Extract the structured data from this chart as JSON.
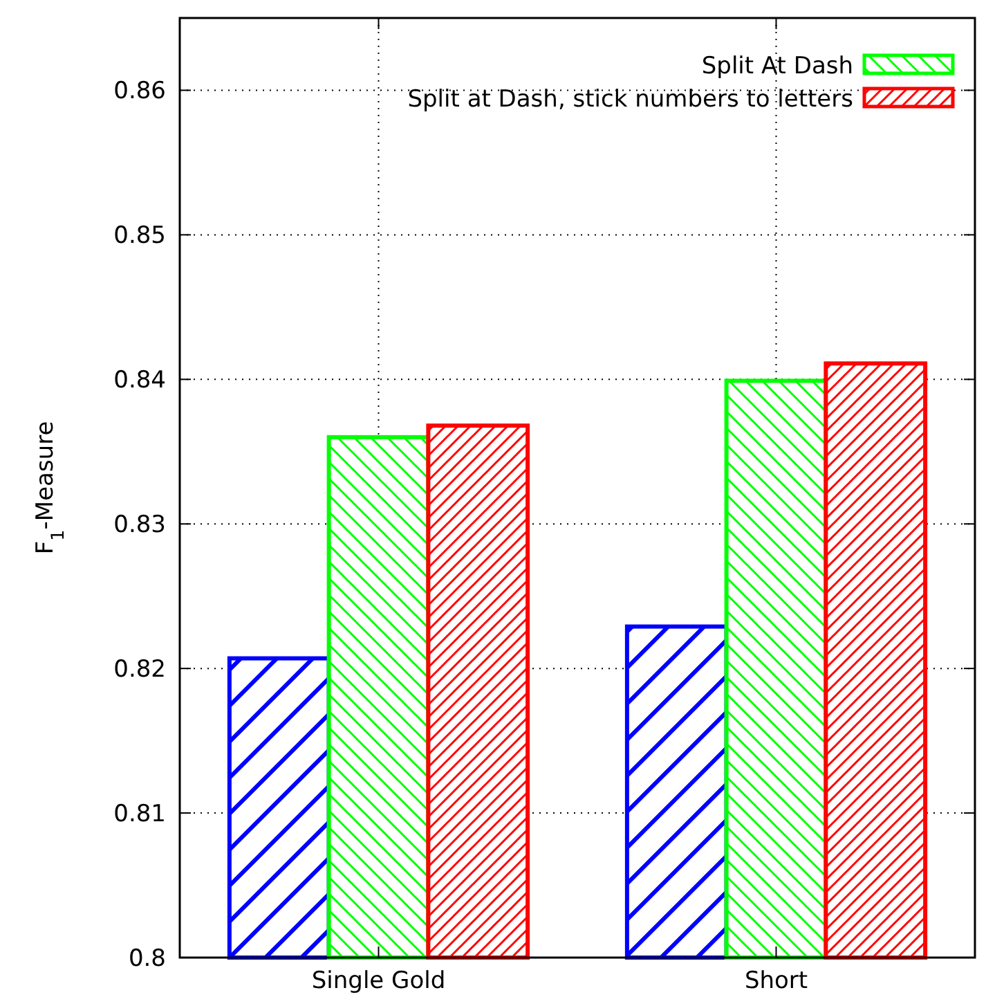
{
  "chart_data": {
    "type": "bar",
    "ylabel": "F$_{1}$-Measure",
    "categories": [
      "Single Gold",
      "Short"
    ],
    "series": [
      {
        "color": "#0000ff",
        "values": [
          0.8207,
          0.8229
        ]
      },
      {
        "name": "Split At Dash",
        "color": "#00ff00",
        "values": [
          0.836,
          0.8399
        ]
      },
      {
        "name": "Split at Dash, stick numbers to letters",
        "color": "#ff0000",
        "values": [
          0.8368,
          0.8411
        ]
      }
    ],
    "ylim": [
      0.8,
      0.865
    ],
    "yticks": [
      0.8,
      0.81,
      0.82,
      0.83,
      0.84,
      0.85,
      0.86
    ],
    "grid": true,
    "legend": "top right"
  }
}
